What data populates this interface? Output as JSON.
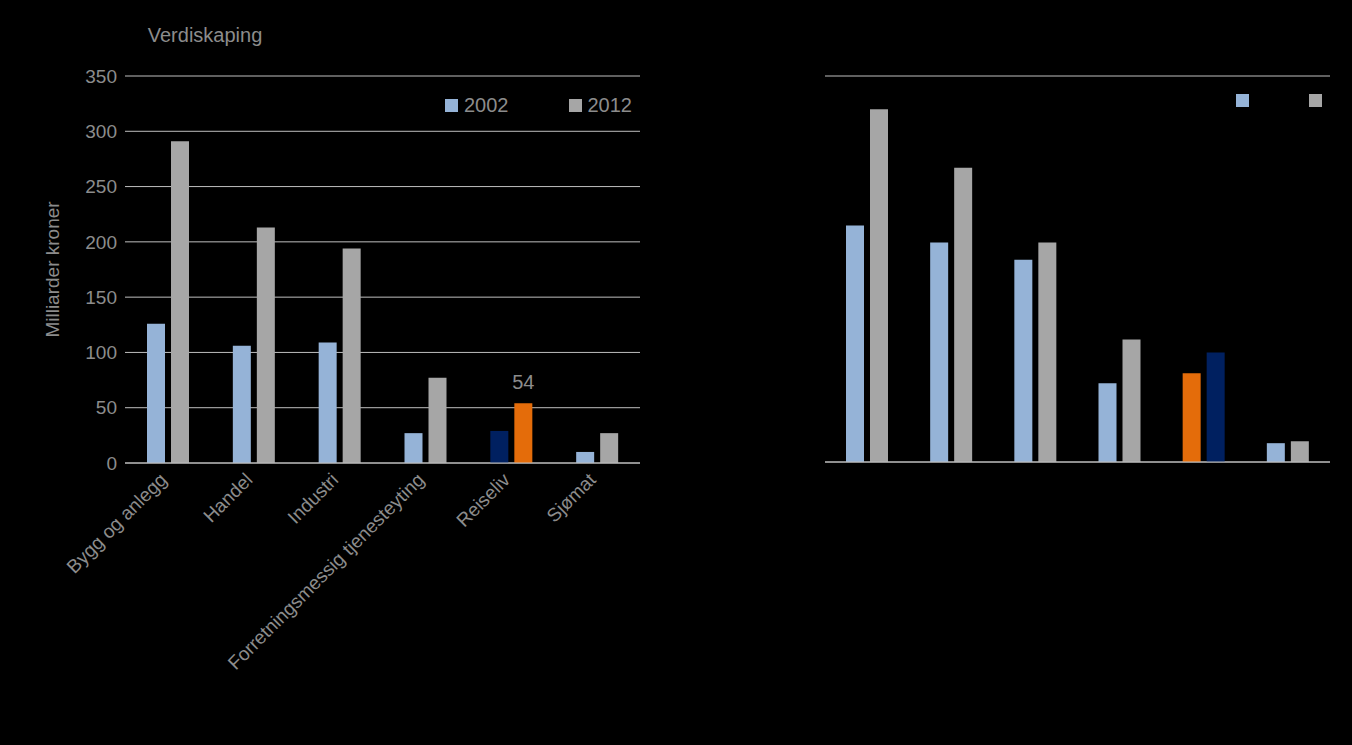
{
  "chart_data": [
    {
      "type": "bar",
      "title": "Verdiskaping",
      "y_label": "Milliarder kroner",
      "categories": [
        "Bygg og anlegg",
        "Handel",
        "Industri",
        "Forretningsmessig tjenesteyting",
        "Reiseliv",
        "Sjømat"
      ],
      "series": [
        {
          "name": "2002",
          "color": "#95b3d7",
          "colors": [
            "#95b3d7",
            "#95b3d7",
            "#95b3d7",
            "#95b3d7",
            "#002060",
            "#95b3d7"
          ],
          "values": [
            126,
            106,
            109,
            27,
            29,
            10
          ]
        },
        {
          "name": "2012",
          "color": "#a6a6a6",
          "colors": [
            "#a6a6a6",
            "#a6a6a6",
            "#a6a6a6",
            "#a6a6a6",
            "#e46c0a",
            "#a6a6a6"
          ],
          "values": [
            291,
            213,
            194,
            77,
            54,
            27
          ],
          "value_labels": [
            null,
            null,
            null,
            null,
            "54",
            null
          ]
        }
      ],
      "ylim": [
        0,
        350
      ],
      "yticks": [
        0,
        50,
        100,
        150,
        200,
        250,
        300,
        350
      ],
      "grid": true,
      "legend": "upper right"
    },
    {
      "type": "bar",
      "categories": [
        null,
        null,
        null,
        null,
        null,
        null
      ],
      "series": [
        {
          "name": null,
          "color": "#95b3d7",
          "colors": [
            "#95b3d7",
            "#95b3d7",
            "#95b3d7",
            "#95b3d7",
            "#e46c0a",
            "#95b3d7"
          ],
          "values": [
            4.9,
            4.55,
            4.19,
            1.63,
            1.84,
            0.39
          ]
        },
        {
          "name": null,
          "color": "#a6a6a6",
          "colors": [
            "#a6a6a6",
            "#a6a6a6",
            "#a6a6a6",
            "#a6a6a6",
            "#002060",
            "#a6a6a6"
          ],
          "values": [
            7.31,
            6.1,
            4.55,
            2.54,
            2.27,
            0.43
          ]
        }
      ],
      "ylim": [
        0,
        8
      ],
      "yticks": [
        0,
        1,
        2,
        3,
        4,
        5,
        6,
        7,
        8
      ],
      "grid": true,
      "legend": "upper right",
      "tick_labels": false
    }
  ]
}
